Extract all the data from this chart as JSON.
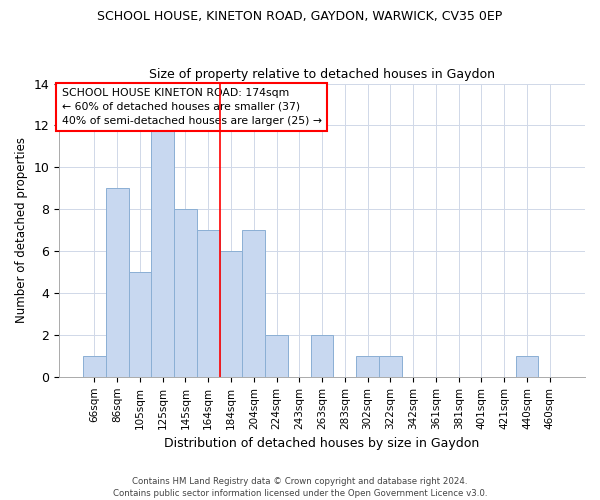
{
  "title1": "SCHOOL HOUSE, KINETON ROAD, GAYDON, WARWICK, CV35 0EP",
  "title2": "Size of property relative to detached houses in Gaydon",
  "xlabel": "Distribution of detached houses by size in Gaydon",
  "ylabel": "Number of detached properties",
  "categories": [
    "66sqm",
    "86sqm",
    "105sqm",
    "125sqm",
    "145sqm",
    "164sqm",
    "184sqm",
    "204sqm",
    "224sqm",
    "243sqm",
    "263sqm",
    "283sqm",
    "302sqm",
    "322sqm",
    "342sqm",
    "361sqm",
    "381sqm",
    "401sqm",
    "421sqm",
    "440sqm",
    "460sqm"
  ],
  "values": [
    1,
    9,
    5,
    12,
    8,
    7,
    6,
    7,
    2,
    0,
    2,
    0,
    1,
    1,
    0,
    0,
    0,
    0,
    0,
    1,
    0
  ],
  "bar_color": "#c8d8f0",
  "bar_edge_color": "#8bafd4",
  "ref_line_x": 5.5,
  "annotation_title": "SCHOOL HOUSE KINETON ROAD: 174sqm",
  "annotation_line1": "← 60% of detached houses are smaller (37)",
  "annotation_line2": "40% of semi-detached houses are larger (25) →",
  "ylim": [
    0,
    14
  ],
  "yticks": [
    0,
    2,
    4,
    6,
    8,
    10,
    12,
    14
  ],
  "footer1": "Contains HM Land Registry data © Crown copyright and database right 2024.",
  "footer2": "Contains public sector information licensed under the Open Government Licence v3.0.",
  "background_color": "#ffffff",
  "plot_bg_color": "#ffffff",
  "grid_color": "#d0d8e8"
}
